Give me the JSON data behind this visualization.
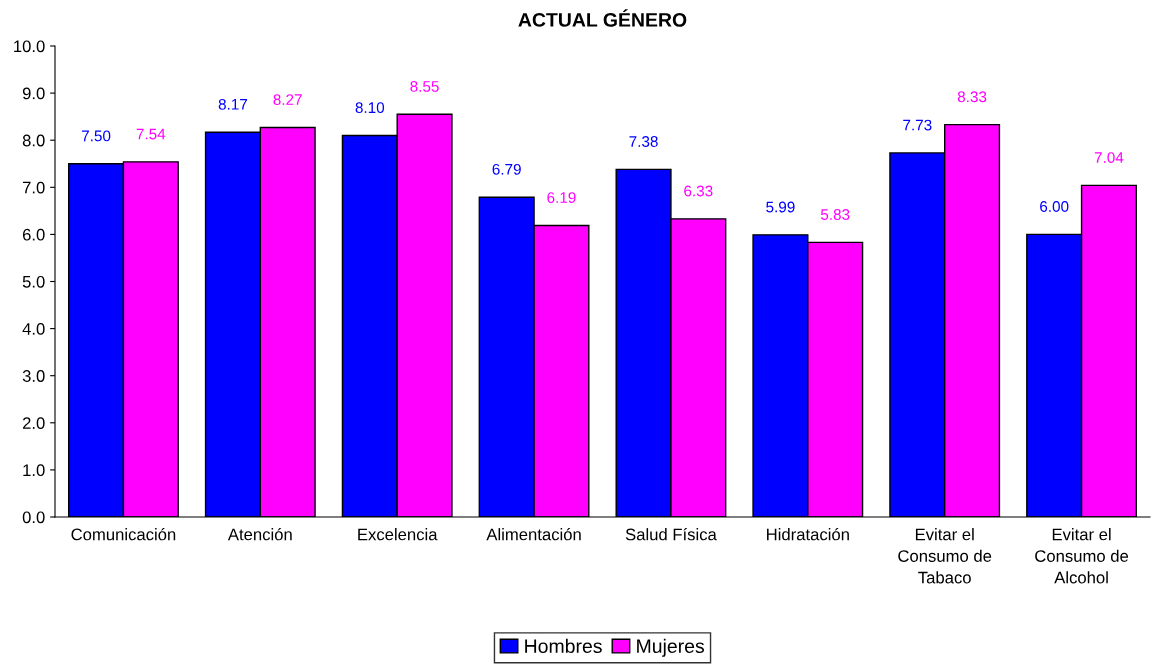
{
  "chart_data": {
    "type": "bar",
    "title": "ACTUAL GÉNERO",
    "categories": [
      "Comunicación",
      "Atención",
      "Excelencia",
      "Alimentación",
      "Salud Física",
      "Hidratación",
      "Evitar el\nConsumo de\nTabaco",
      "Evitar el\nConsumo de\nAlcohol"
    ],
    "series": [
      {
        "name": "Hombres",
        "color": "#0000ff",
        "values": [
          7.5,
          8.17,
          8.1,
          6.79,
          7.38,
          5.99,
          7.73,
          6.0
        ],
        "value_labels": [
          "7.50",
          "8.17",
          "8.10",
          "6.79",
          "7.38",
          "5.99",
          "7.73",
          "6.00"
        ]
      },
      {
        "name": "Mujeres",
        "color": "#ff00ff",
        "values": [
          7.54,
          8.27,
          8.55,
          6.19,
          6.33,
          5.83,
          8.33,
          7.04
        ],
        "value_labels": [
          "7.54",
          "8.27",
          "8.55",
          "6.19",
          "6.33",
          "5.83",
          "8.33",
          "7.04"
        ]
      }
    ],
    "ylim": [
      0,
      10
    ],
    "yticks": [
      {
        "value": 0,
        "label": "0.0"
      },
      {
        "value": 1,
        "label": "1.0"
      },
      {
        "value": 2,
        "label": "2.0"
      },
      {
        "value": 3,
        "label": "3.0"
      },
      {
        "value": 4,
        "label": "4.0"
      },
      {
        "value": 5,
        "label": "5.0"
      },
      {
        "value": 6,
        "label": "6.0"
      },
      {
        "value": 7,
        "label": "7.0"
      },
      {
        "value": 8,
        "label": "8.0"
      },
      {
        "value": 9,
        "label": "9.0"
      },
      {
        "value": 10,
        "label": "10.0"
      }
    ],
    "grid": false,
    "legend": "bottom"
  }
}
